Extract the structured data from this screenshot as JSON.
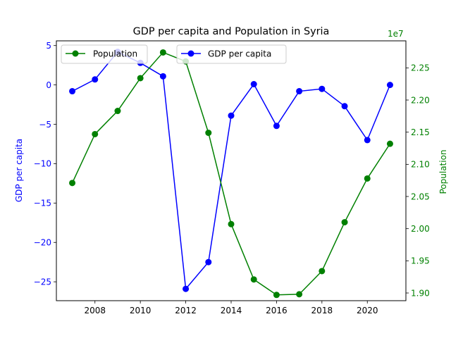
{
  "chart_data": {
    "type": "line",
    "title": "GDP per capita and Population in Syria",
    "x": [
      2007,
      2008,
      2009,
      2010,
      2011,
      2012,
      2013,
      2014,
      2015,
      2016,
      2017,
      2018,
      2019,
      2020,
      2021
    ],
    "x_ticks": [
      2008,
      2010,
      2012,
      2014,
      2016,
      2018,
      2020
    ],
    "xlim": [
      2006.3,
      2021.7
    ],
    "left_axis": {
      "label": "GDP per capita",
      "color": "#0000ff",
      "ylim": [
        -27.4,
        5.6
      ],
      "ticks": [
        5,
        0,
        -5,
        -10,
        -15,
        -20,
        -25
      ]
    },
    "right_axis": {
      "label": "Population",
      "color": "#008000",
      "offset_text": "1e7",
      "ylim": [
        1.888,
        2.292
      ],
      "ticks": [
        1.9,
        1.95,
        2.0,
        2.05,
        2.1,
        2.15,
        2.2,
        2.25
      ],
      "tick_labels": [
        "1.90",
        "1.95",
        "2.00",
        "2.05",
        "2.10",
        "2.15",
        "2.20",
        "2.25"
      ]
    },
    "series": [
      {
        "name": "GDP per capita",
        "axis": "left",
        "color": "#0000ff",
        "values": [
          -0.8,
          0.7,
          4.2,
          2.8,
          1.1,
          -25.9,
          -22.5,
          -3.9,
          0.1,
          -5.2,
          -0.8,
          -0.5,
          -2.7,
          -7.0,
          0.0
        ]
      },
      {
        "name": "Population",
        "axis": "right",
        "color": "#008000",
        "values": [
          2.071,
          2.147,
          2.183,
          2.234,
          2.274,
          2.26,
          2.149,
          2.007,
          1.921,
          1.897,
          1.898,
          1.934,
          2.01,
          2.078,
          2.132
        ]
      }
    ],
    "legend": [
      {
        "label": "Population",
        "series": 1,
        "placement": "top-left"
      },
      {
        "label": "GDP per capita",
        "series": 0,
        "placement": "top-center"
      }
    ]
  }
}
